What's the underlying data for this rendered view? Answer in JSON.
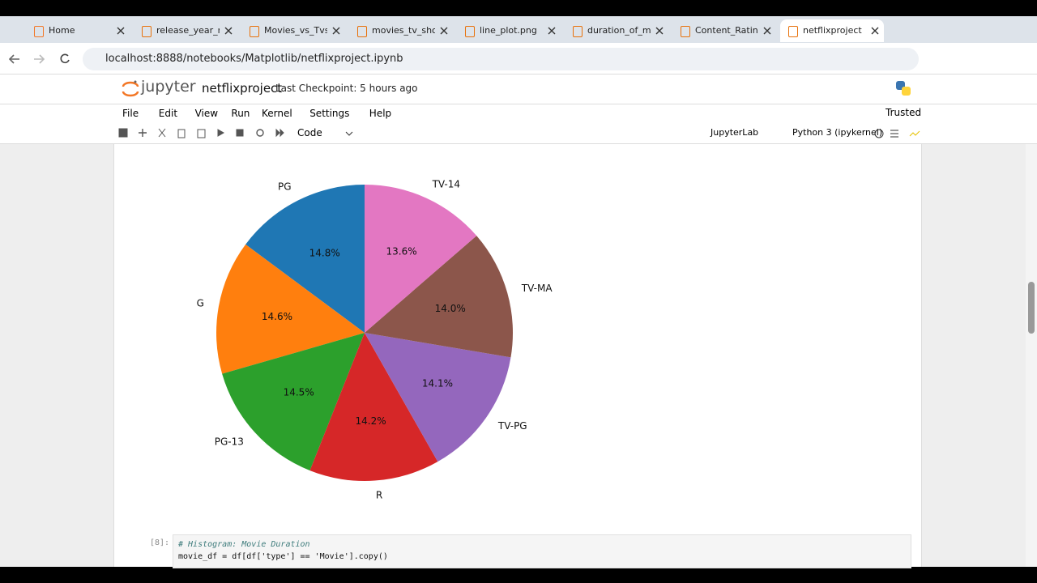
{
  "browser": {
    "tabs": [
      "Home",
      "release_year_mo",
      "Movies_vs_Tvsho",
      "movies_tv_show",
      "line_plot.png",
      "duration_of_mov",
      "Content_Rating_",
      "netflixproject"
    ],
    "url": "localhost:8888/notebooks/Matplotlib/netflixproject.ipynb"
  },
  "header": {
    "logo": "jupyter",
    "notebook": "netflixproject",
    "checkpoint": "Last Checkpoint: 5 hours ago"
  },
  "menu": [
    "File",
    "Edit",
    "View",
    "Run",
    "Kernel",
    "Settings",
    "Help"
  ],
  "trusted": "Trusted",
  "toolbar": {
    "cell_type": "Code",
    "lab": "JupyterLab",
    "kernel": "Python 3 (ipykernel)"
  },
  "chart_data": {
    "type": "pie",
    "start_angle": 90,
    "categories": [
      "PG",
      "G",
      "PG-13",
      "R",
      "TV-PG",
      "TV-MA",
      "TV-14"
    ],
    "values": [
      14.8,
      14.6,
      14.5,
      14.2,
      14.1,
      14.0,
      13.6
    ],
    "value_labels": [
      "14.8%",
      "14.6%",
      "14.5%",
      "14.2%",
      "14.1%",
      "14.0%",
      "13.6%"
    ],
    "colors": [
      "#1f77b4",
      "#ff7f0e",
      "#2ca02c",
      "#d62728",
      "#9467bd",
      "#8c564b",
      "#e377c2"
    ]
  },
  "cell": {
    "prompt": "[8]:",
    "lines": [
      "# Histogram: Movie Duration",
      "movie_df = df[df['type'] == 'Movie'].copy()"
    ]
  }
}
